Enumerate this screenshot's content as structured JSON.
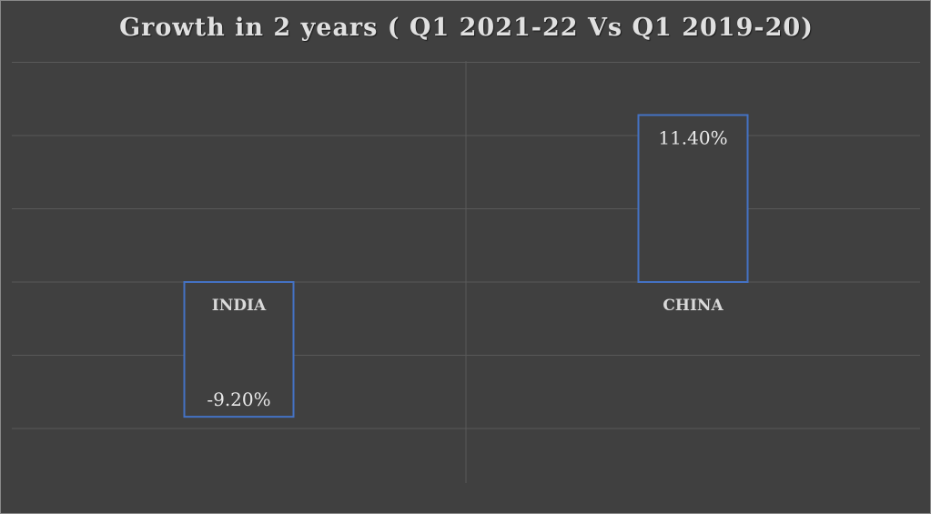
{
  "chart_data": {
    "type": "bar",
    "title": "Growth in 2 years ( Q1 2021-22 Vs Q1 2019-20)",
    "categories": [
      "INDIA",
      "CHINA"
    ],
    "values": [
      -9.2,
      11.4
    ],
    "value_labels": [
      "-9.20%",
      "11.40%"
    ],
    "ylim": [
      -10,
      15
    ],
    "grid": true,
    "legend": "none",
    "colors": {
      "background": "#404040",
      "bar_fill": "#404040",
      "bar_border": "#4472c4",
      "gridline": "#595959",
      "text": "#d9d9d9"
    }
  }
}
